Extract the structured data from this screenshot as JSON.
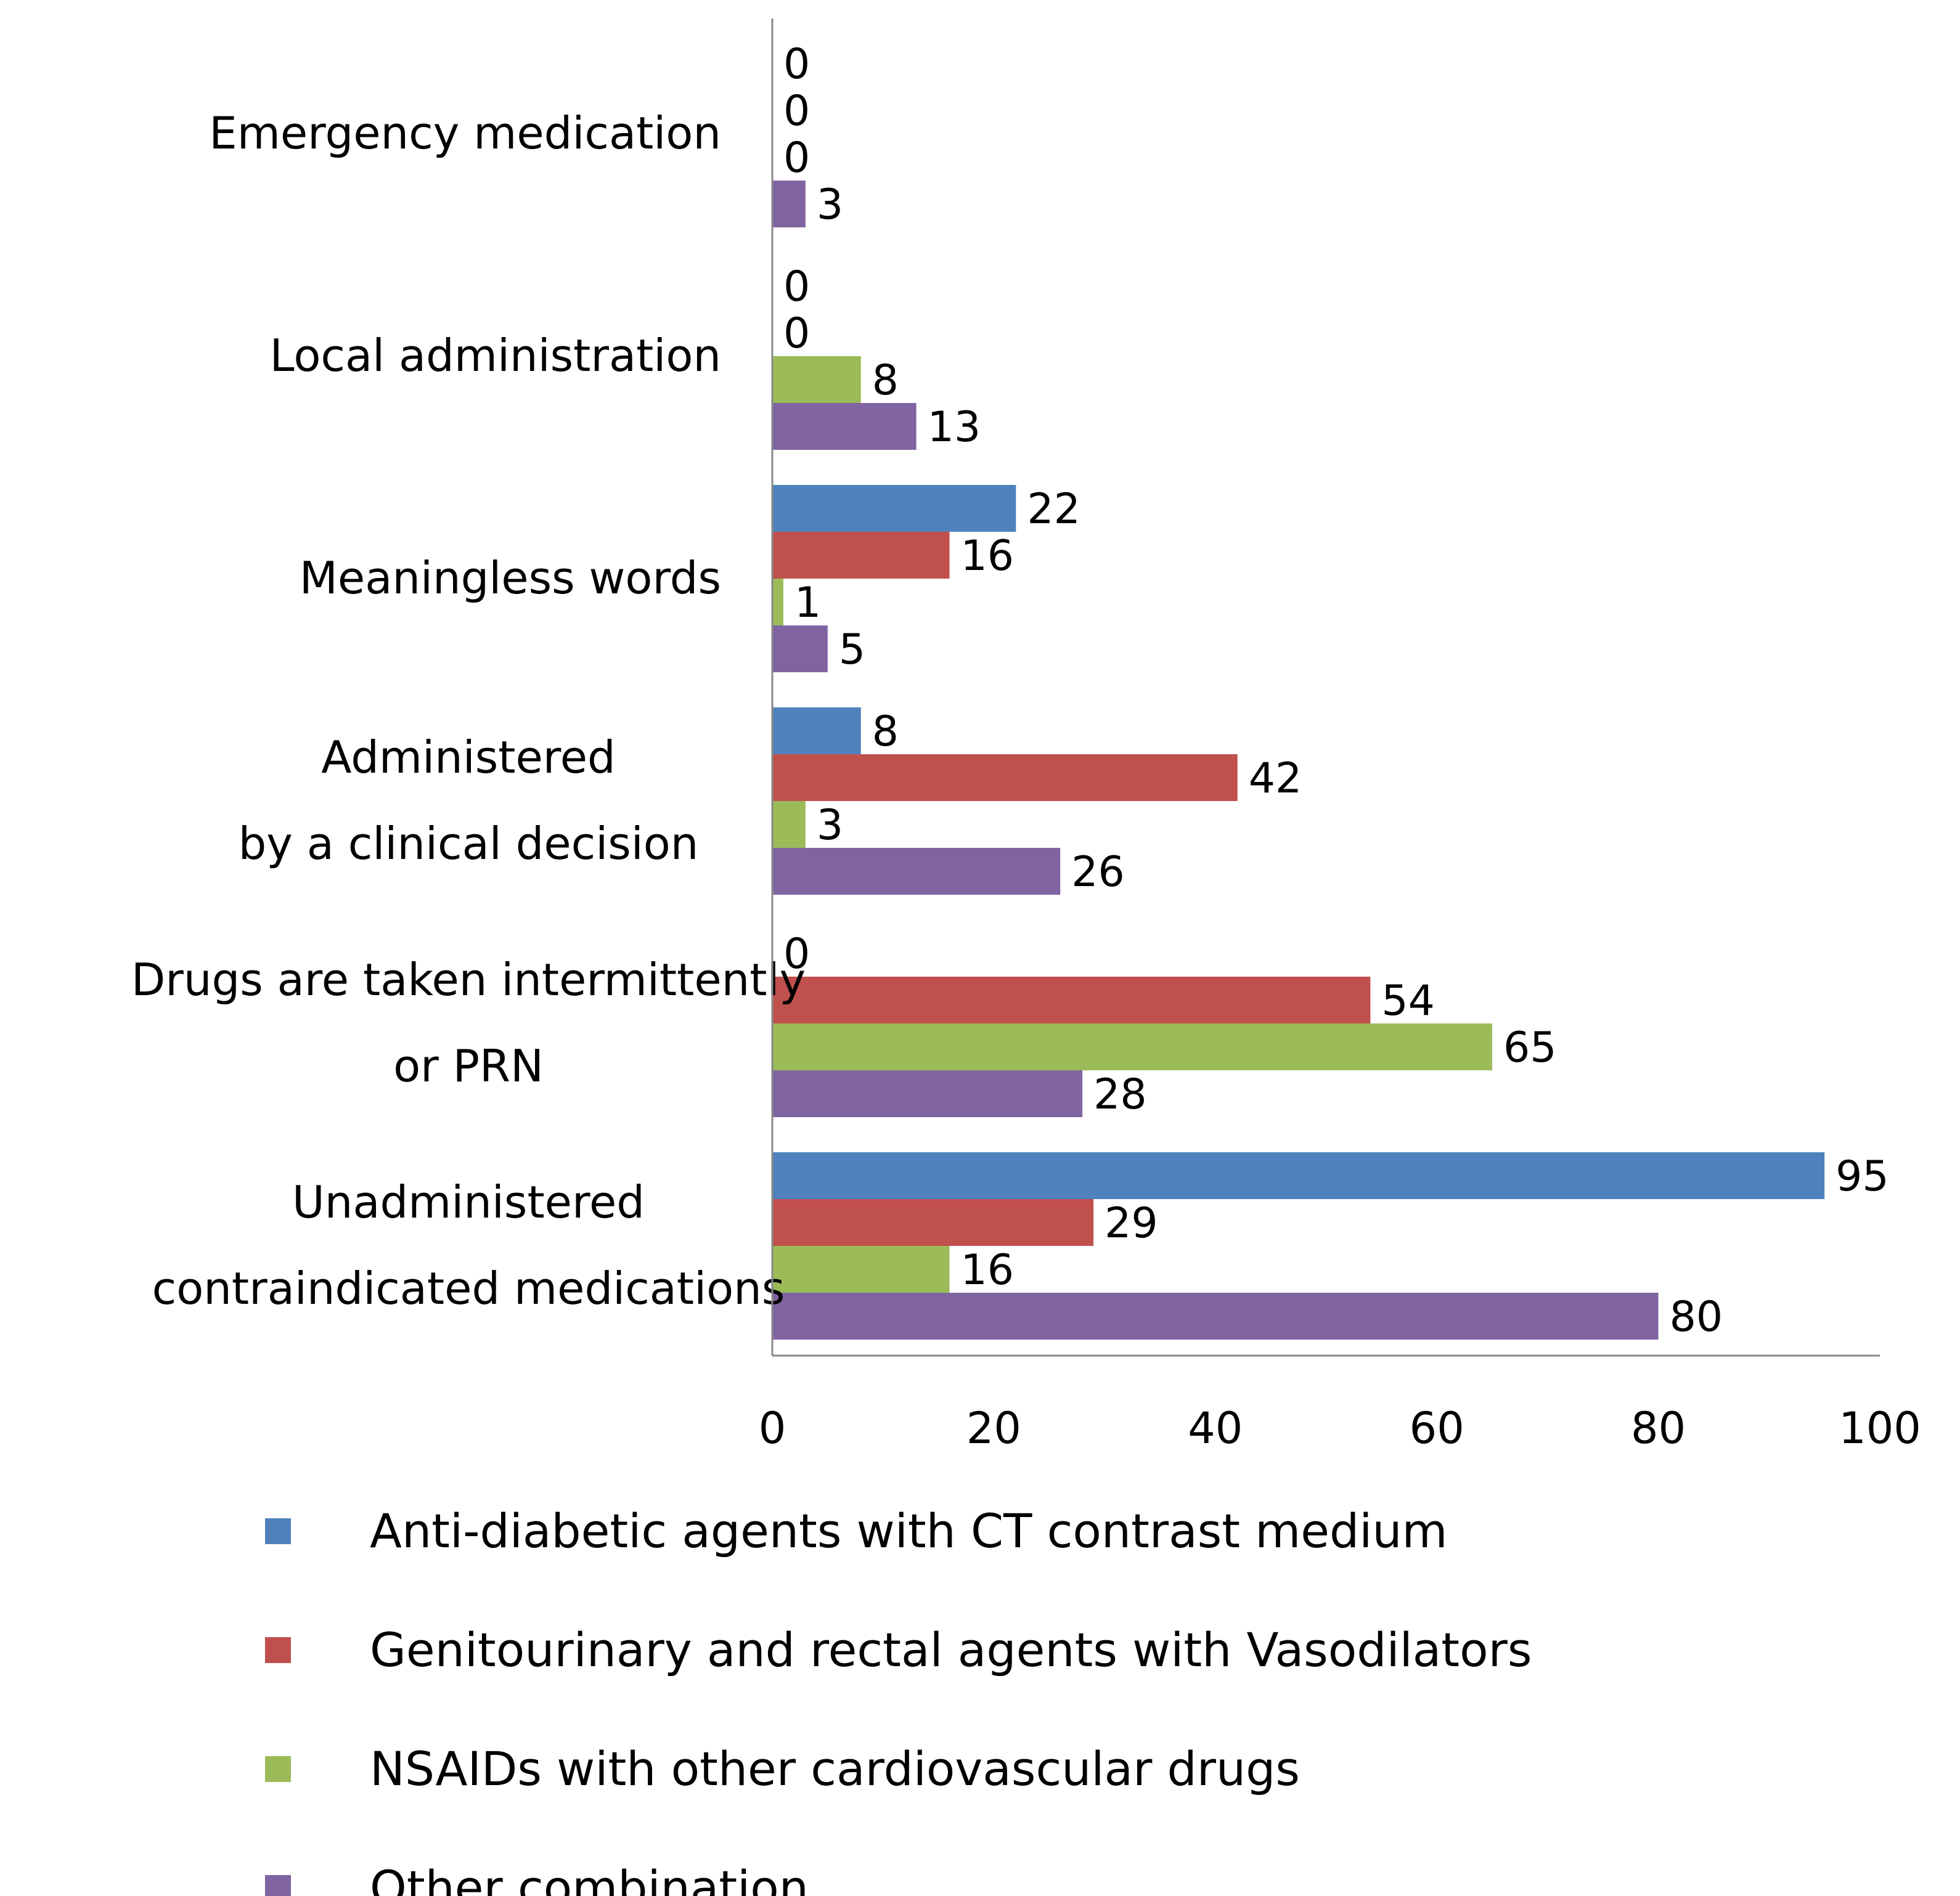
{
  "chart_data": {
    "type": "bar",
    "orientation": "horizontal",
    "categories": [
      [
        "Emergency medication"
      ],
      [
        "Local administration"
      ],
      [
        "Meaningless words"
      ],
      [
        "Administered",
        "by a clinical decision"
      ],
      [
        "Drugs are taken intermittently",
        "or PRN"
      ],
      [
        "Unadministered",
        "contraindicated medications"
      ]
    ],
    "series": [
      {
        "name": "Anti-diabetic agents with CT contrast medium",
        "color": "#4F81BD",
        "values": [
          0,
          0,
          22,
          8,
          0,
          95
        ]
      },
      {
        "name": "Genitourinary and rectal agents with Vasodilators",
        "color": "#C0504D",
        "values": [
          0,
          0,
          16,
          42,
          54,
          29
        ]
      },
      {
        "name": "NSAIDs with other cardiovascular drugs",
        "color": "#9BBB59",
        "values": [
          0,
          8,
          1,
          3,
          65,
          16
        ]
      },
      {
        "name": "Other combination",
        "color": "#8064A2",
        "values": [
          3,
          13,
          5,
          26,
          28,
          80
        ]
      }
    ],
    "xlim": [
      0,
      100
    ],
    "xticks": [
      "0",
      "20",
      "40",
      "60",
      "80",
      "100"
    ],
    "data_labels": true,
    "grid": false,
    "legend_position": "bottom"
  }
}
